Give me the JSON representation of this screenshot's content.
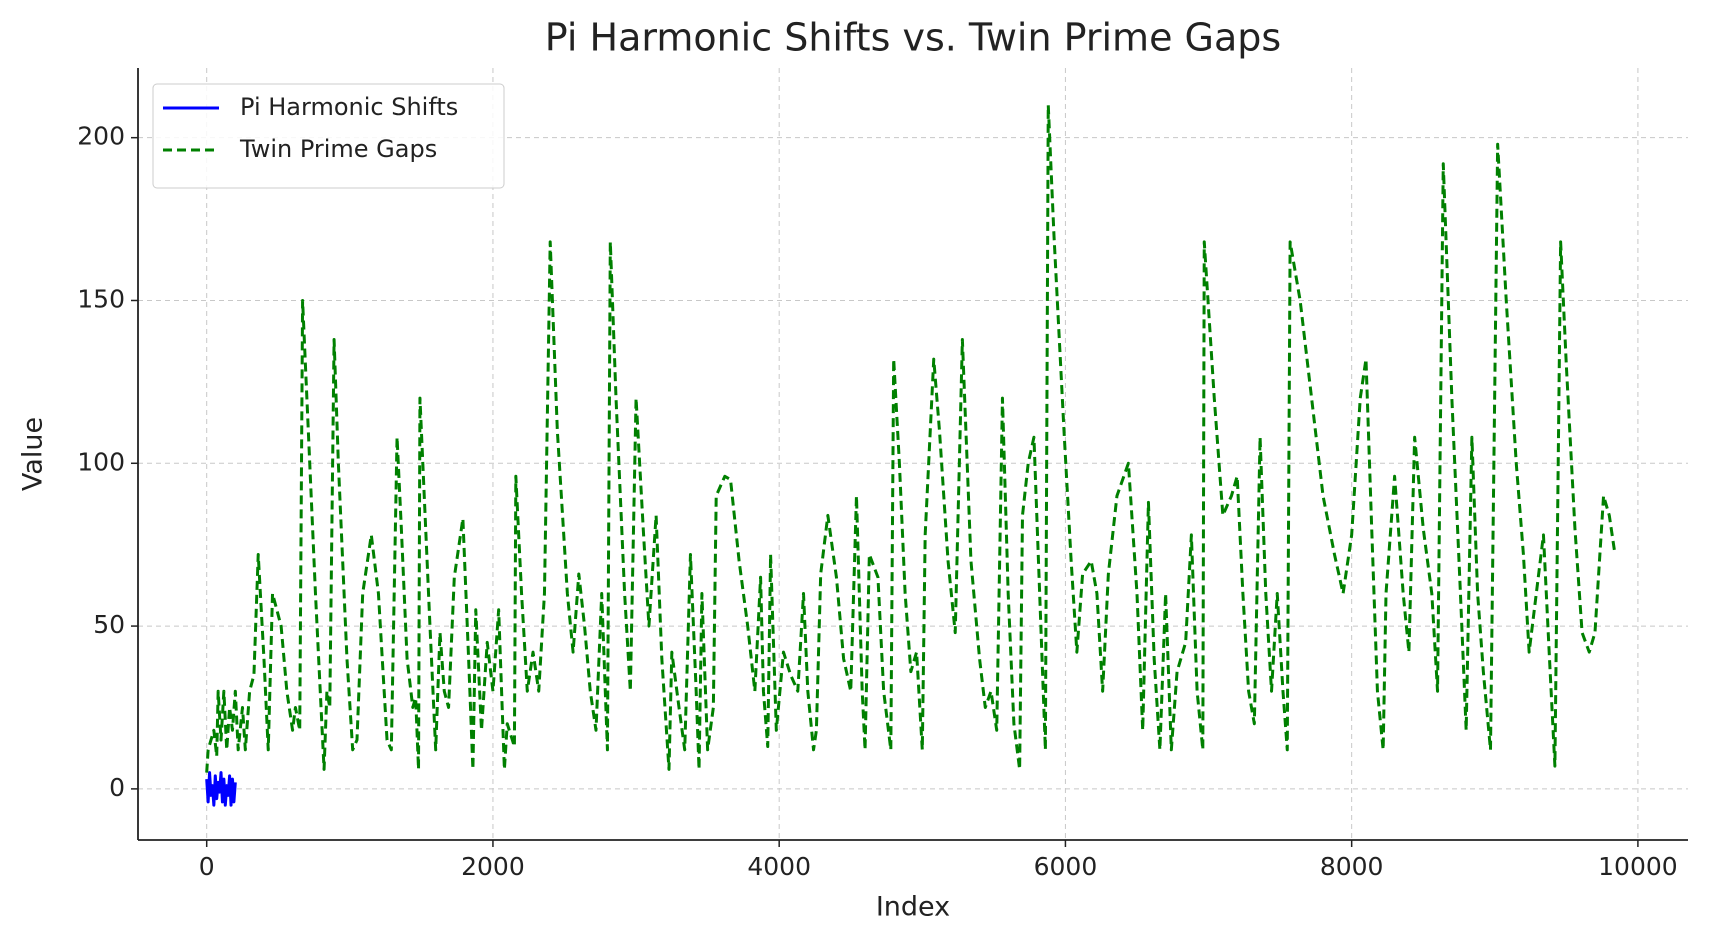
{
  "chart_data": {
    "type": "line",
    "title": "Pi Harmonic Shifts vs. Twin Prime Gaps",
    "x_label": "Index",
    "y_label": "Value",
    "xlim": [
      -480,
      10350
    ],
    "ylim": [
      -15.7,
      221.4
    ],
    "xticks": [
      0,
      2000,
      4000,
      6000,
      8000,
      10000
    ],
    "yticks": [
      0,
      50,
      100,
      150,
      200
    ],
    "grid": true,
    "legend": "upper left",
    "series": [
      {
        "name": "Pi Harmonic Shifts",
        "color": "#0000ff",
        "linestyle": "solid",
        "x": [
          0,
          10,
          20,
          30,
          40,
          50,
          60,
          70,
          80,
          90,
          100,
          110,
          120,
          130,
          140,
          150,
          160,
          170,
          180,
          190,
          200
        ],
        "values": [
          3,
          -4,
          5,
          -2,
          1,
          -5,
          4,
          -3,
          2,
          -1,
          5,
          -4,
          3,
          -5,
          1,
          -2,
          4,
          -5,
          3,
          -4,
          2
        ]
      },
      {
        "name": "Twin Prime Gaps",
        "color": "#008000",
        "linestyle": "dashed",
        "x": [
          0,
          10,
          50,
          70,
          80,
          100,
          120,
          140,
          160,
          180,
          200,
          220,
          250,
          270,
          300,
          330,
          360,
          400,
          430,
          460,
          520,
          560,
          600,
          620,
          650,
          670,
          700,
          760,
          820,
          840,
          860,
          890,
          920,
          980,
          1020,
          1050,
          1090,
          1150,
          1200,
          1260,
          1290,
          1330,
          1360,
          1400,
          1440,
          1460,
          1480,
          1490,
          1530,
          1560,
          1600,
          1630,
          1660,
          1690,
          1730,
          1790,
          1830,
          1860,
          1880,
          1920,
          1960,
          2000,
          2040,
          2080,
          2100,
          2150,
          2160,
          2200,
          2240,
          2280,
          2320,
          2360,
          2400,
          2450,
          2520,
          2560,
          2600,
          2640,
          2680,
          2720,
          2760,
          2800,
          2820,
          2860,
          2920,
          2960,
          3000,
          3050,
          3090,
          3140,
          3180,
          3230,
          3250,
          3300,
          3340,
          3380,
          3420,
          3440,
          3460,
          3500,
          3540,
          3560,
          3620,
          3660,
          3720,
          3780,
          3830,
          3870,
          3890,
          3920,
          3940,
          3980,
          4030,
          4080,
          4130,
          4170,
          4200,
          4240,
          4260,
          4290,
          4340,
          4400,
          4450,
          4500,
          4540,
          4580,
          4600,
          4630,
          4690,
          4730,
          4780,
          4800,
          4840,
          4880,
          4920,
          4960,
          5000,
          5020,
          5080,
          5120,
          5180,
          5230,
          5280,
          5340,
          5400,
          5440,
          5480,
          5520,
          5560,
          5600,
          5640,
          5680,
          5700,
          5740,
          5780,
          5820,
          5860,
          5880,
          5920,
          5990,
          6040,
          6080,
          6120,
          6180,
          6220,
          6260,
          6300,
          6360,
          6440,
          6500,
          6540,
          6580,
          6620,
          6660,
          6700,
          6740,
          6780,
          6840,
          6880,
          6920,
          6960,
          6970,
          7040,
          7100,
          7160,
          7200,
          7240,
          7280,
          7320,
          7360,
          7400,
          7440,
          7480,
          7520,
          7550,
          7570,
          7640,
          7720,
          7800,
          7880,
          7940,
          8000,
          8060,
          8100,
          8140,
          8180,
          8220,
          8240,
          8300,
          8360,
          8400,
          8440,
          8500,
          8560,
          8600,
          8640,
          8700,
          8760,
          8800,
          8840,
          8880,
          8920,
          8970,
          9020,
          9080,
          9150,
          9200,
          9240,
          9290,
          9340,
          9380,
          9420,
          9460,
          9500,
          9560,
          9610,
          9660,
          9700,
          9760,
          9800,
          9840
        ],
        "values": [
          5,
          12,
          18,
          10,
          30,
          15,
          30,
          12,
          25,
          18,
          30,
          12,
          25,
          12,
          30,
          35,
          72,
          40,
          12,
          60,
          50,
          30,
          18,
          25,
          18,
          150,
          120,
          60,
          6,
          30,
          25,
          138,
          100,
          40,
          12,
          15,
          60,
          78,
          60,
          15,
          12,
          108,
          80,
          40,
          25,
          28,
          6,
          120,
          80,
          50,
          12,
          48,
          30,
          25,
          65,
          83,
          40,
          6,
          55,
          18,
          45,
          30,
          55,
          6,
          20,
          13,
          96,
          60,
          30,
          42,
          30,
          60,
          168,
          110,
          60,
          42,
          66,
          50,
          30,
          18,
          60,
          12,
          168,
          120,
          60,
          30,
          120,
          80,
          50,
          84,
          40,
          6,
          42,
          25,
          12,
          72,
          30,
          6,
          60,
          12,
          25,
          90,
          96,
          95,
          70,
          50,
          30,
          65,
          30,
          13,
          72,
          18,
          42,
          35,
          30,
          60,
          30,
          12,
          18,
          66,
          84,
          65,
          40,
          30,
          90,
          30,
          12,
          72,
          65,
          30,
          12,
          132,
          100,
          60,
          36,
          42,
          12,
          78,
          132,
          110,
          70,
          48,
          138,
          70,
          40,
          25,
          30,
          18,
          120,
          60,
          20,
          6,
          84,
          100,
          108,
          60,
          12,
          210,
          170,
          110,
          70,
          42,
          66,
          70,
          60,
          30,
          66,
          90,
          100,
          60,
          18,
          88,
          40,
          12,
          60,
          12,
          36,
          45,
          78,
          30,
          12,
          168,
          120,
          84,
          90,
          96,
          60,
          30,
          20,
          108,
          60,
          30,
          60,
          30,
          12,
          168,
          150,
          120,
          90,
          72,
          60,
          78,
          120,
          132,
          80,
          30,
          12,
          60,
          96,
          60,
          42,
          108,
          80,
          60,
          30,
          192,
          120,
          60,
          18,
          108,
          60,
          36,
          12,
          198,
          150,
          100,
          72,
          42,
          60,
          78,
          42,
          7,
          168,
          130,
          80,
          48,
          42,
          48,
          90,
          84,
          72
        ]
      }
    ]
  }
}
